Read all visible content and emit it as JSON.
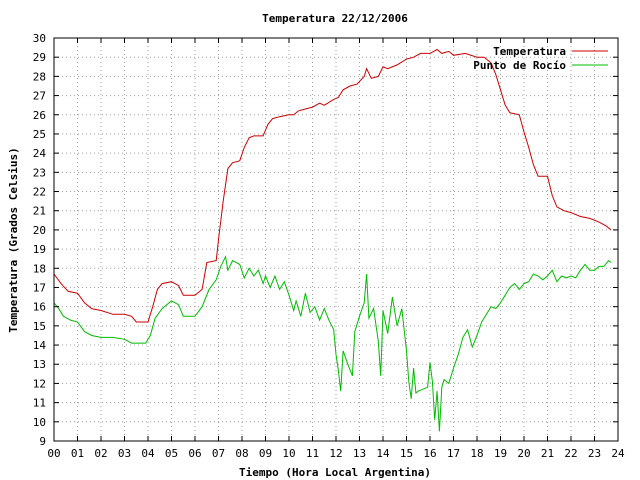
{
  "chart_data": {
    "type": "line",
    "title": "Temperatura 22/12/2006",
    "xlabel": "Tiempo (Hora Local Argentina)",
    "ylabel": "Temperatura (Grados Celsius)",
    "xlim": [
      0,
      24
    ],
    "ylim": [
      9,
      30
    ],
    "grid": true,
    "legend_position": "top-right",
    "x_tick_labels": [
      "00",
      "01",
      "02",
      "03",
      "04",
      "05",
      "06",
      "07",
      "08",
      "09",
      "10",
      "11",
      "12",
      "13",
      "14",
      "15",
      "16",
      "17",
      "18",
      "19",
      "20",
      "21",
      "22",
      "23",
      "24"
    ],
    "y_tick_labels": [
      "9",
      "10",
      "11",
      "12",
      "13",
      "14",
      "15",
      "16",
      "17",
      "18",
      "19",
      "20",
      "21",
      "22",
      "23",
      "24",
      "25",
      "26",
      "27",
      "28",
      "29",
      "30"
    ],
    "series": [
      {
        "name": "Temperatura",
        "color": "#cc0000",
        "points": [
          [
            0.0,
            17.7
          ],
          [
            0.3,
            17.2
          ],
          [
            0.6,
            16.8
          ],
          [
            1.0,
            16.7
          ],
          [
            1.3,
            16.2
          ],
          [
            1.6,
            15.9
          ],
          [
            2.0,
            15.8
          ],
          [
            2.5,
            15.6
          ],
          [
            3.0,
            15.6
          ],
          [
            3.3,
            15.5
          ],
          [
            3.5,
            15.2
          ],
          [
            4.0,
            15.2
          ],
          [
            4.2,
            16.0
          ],
          [
            4.4,
            16.9
          ],
          [
            4.6,
            17.2
          ],
          [
            5.0,
            17.3
          ],
          [
            5.3,
            17.1
          ],
          [
            5.5,
            16.6
          ],
          [
            6.0,
            16.6
          ],
          [
            6.3,
            16.9
          ],
          [
            6.5,
            18.3
          ],
          [
            6.9,
            18.4
          ],
          [
            7.0,
            19.5
          ],
          [
            7.2,
            21.5
          ],
          [
            7.4,
            23.2
          ],
          [
            7.6,
            23.5
          ],
          [
            7.9,
            23.6
          ],
          [
            8.1,
            24.3
          ],
          [
            8.3,
            24.8
          ],
          [
            8.5,
            24.9
          ],
          [
            8.9,
            24.9
          ],
          [
            9.1,
            25.5
          ],
          [
            9.3,
            25.8
          ],
          [
            9.6,
            25.9
          ],
          [
            10.0,
            26.0
          ],
          [
            10.2,
            26.0
          ],
          [
            10.4,
            26.2
          ],
          [
            10.7,
            26.3
          ],
          [
            11.0,
            26.4
          ],
          [
            11.3,
            26.6
          ],
          [
            11.5,
            26.5
          ],
          [
            11.9,
            26.8
          ],
          [
            12.1,
            26.9
          ],
          [
            12.3,
            27.3
          ],
          [
            12.6,
            27.5
          ],
          [
            12.9,
            27.6
          ],
          [
            13.2,
            28.0
          ],
          [
            13.3,
            28.4
          ],
          [
            13.5,
            27.9
          ],
          [
            13.8,
            28.0
          ],
          [
            14.0,
            28.5
          ],
          [
            14.2,
            28.4
          ],
          [
            14.6,
            28.6
          ],
          [
            15.0,
            28.9
          ],
          [
            15.3,
            29.0
          ],
          [
            15.6,
            29.2
          ],
          [
            16.0,
            29.2
          ],
          [
            16.3,
            29.4
          ],
          [
            16.5,
            29.2
          ],
          [
            16.8,
            29.3
          ],
          [
            17.0,
            29.1
          ],
          [
            17.5,
            29.2
          ],
          [
            18.0,
            29.0
          ],
          [
            18.3,
            29.0
          ],
          [
            18.6,
            28.7
          ],
          [
            18.8,
            28.1
          ],
          [
            19.0,
            27.3
          ],
          [
            19.2,
            26.5
          ],
          [
            19.4,
            26.1
          ],
          [
            19.8,
            26.0
          ],
          [
            20.0,
            25.1
          ],
          [
            20.2,
            24.3
          ],
          [
            20.4,
            23.4
          ],
          [
            20.6,
            22.8
          ],
          [
            21.0,
            22.8
          ],
          [
            21.2,
            21.8
          ],
          [
            21.4,
            21.2
          ],
          [
            21.7,
            21.0
          ],
          [
            22.0,
            20.9
          ],
          [
            22.4,
            20.7
          ],
          [
            22.8,
            20.6
          ],
          [
            23.2,
            20.4
          ],
          [
            23.5,
            20.2
          ],
          [
            23.7,
            20.0
          ]
        ]
      },
      {
        "name": "Punto de Rocío",
        "color": "#00bb00",
        "points": [
          [
            0.0,
            16.2
          ],
          [
            0.2,
            15.9
          ],
          [
            0.4,
            15.5
          ],
          [
            0.7,
            15.3
          ],
          [
            1.0,
            15.2
          ],
          [
            1.3,
            14.7
          ],
          [
            1.6,
            14.5
          ],
          [
            2.0,
            14.4
          ],
          [
            2.5,
            14.4
          ],
          [
            3.0,
            14.3
          ],
          [
            3.3,
            14.1
          ],
          [
            3.9,
            14.1
          ],
          [
            4.1,
            14.5
          ],
          [
            4.3,
            15.4
          ],
          [
            4.6,
            15.9
          ],
          [
            5.0,
            16.3
          ],
          [
            5.3,
            16.1
          ],
          [
            5.5,
            15.5
          ],
          [
            6.0,
            15.5
          ],
          [
            6.3,
            16.0
          ],
          [
            6.6,
            16.9
          ],
          [
            6.9,
            17.4
          ],
          [
            7.1,
            18.1
          ],
          [
            7.3,
            18.6
          ],
          [
            7.4,
            17.9
          ],
          [
            7.6,
            18.4
          ],
          [
            7.9,
            18.2
          ],
          [
            8.1,
            17.5
          ],
          [
            8.3,
            18.0
          ],
          [
            8.5,
            17.6
          ],
          [
            8.7,
            17.9
          ],
          [
            8.9,
            17.2
          ],
          [
            9.0,
            17.6
          ],
          [
            9.2,
            17.0
          ],
          [
            9.4,
            17.6
          ],
          [
            9.6,
            16.9
          ],
          [
            9.8,
            17.3
          ],
          [
            10.0,
            16.6
          ],
          [
            10.2,
            15.8
          ],
          [
            10.3,
            16.3
          ],
          [
            10.5,
            15.5
          ],
          [
            10.7,
            16.7
          ],
          [
            10.9,
            15.7
          ],
          [
            11.1,
            16.0
          ],
          [
            11.3,
            15.3
          ],
          [
            11.5,
            15.9
          ],
          [
            11.7,
            15.3
          ],
          [
            11.9,
            14.8
          ],
          [
            12.0,
            13.5
          ],
          [
            12.1,
            12.7
          ],
          [
            12.2,
            11.6
          ],
          [
            12.3,
            13.7
          ],
          [
            12.5,
            13.0
          ],
          [
            12.7,
            12.4
          ],
          [
            12.8,
            14.7
          ],
          [
            13.0,
            15.5
          ],
          [
            13.2,
            16.2
          ],
          [
            13.3,
            17.7
          ],
          [
            13.4,
            15.4
          ],
          [
            13.6,
            15.9
          ],
          [
            13.8,
            14.2
          ],
          [
            13.9,
            12.4
          ],
          [
            14.0,
            15.8
          ],
          [
            14.2,
            14.6
          ],
          [
            14.4,
            16.5
          ],
          [
            14.6,
            15.0
          ],
          [
            14.8,
            15.9
          ],
          [
            15.0,
            13.7
          ],
          [
            15.1,
            12.1
          ],
          [
            15.2,
            11.2
          ],
          [
            15.3,
            12.8
          ],
          [
            15.4,
            11.5
          ],
          [
            15.5,
            11.6
          ],
          [
            15.7,
            11.7
          ],
          [
            15.9,
            11.8
          ],
          [
            16.0,
            13.1
          ],
          [
            16.1,
            12.1
          ],
          [
            16.2,
            10.1
          ],
          [
            16.3,
            11.6
          ],
          [
            16.4,
            9.5
          ],
          [
            16.5,
            11.8
          ],
          [
            16.6,
            12.2
          ],
          [
            16.8,
            12.0
          ],
          [
            17.0,
            12.8
          ],
          [
            17.2,
            13.5
          ],
          [
            17.4,
            14.4
          ],
          [
            17.6,
            14.8
          ],
          [
            17.8,
            13.9
          ],
          [
            18.0,
            14.5
          ],
          [
            18.2,
            15.2
          ],
          [
            18.4,
            15.6
          ],
          [
            18.6,
            16.0
          ],
          [
            18.8,
            15.9
          ],
          [
            19.0,
            16.2
          ],
          [
            19.2,
            16.6
          ],
          [
            19.4,
            17.0
          ],
          [
            19.6,
            17.2
          ],
          [
            19.8,
            16.9
          ],
          [
            20.0,
            17.2
          ],
          [
            20.2,
            17.3
          ],
          [
            20.4,
            17.7
          ],
          [
            20.6,
            17.6
          ],
          [
            20.8,
            17.4
          ],
          [
            21.0,
            17.6
          ],
          [
            21.2,
            17.9
          ],
          [
            21.4,
            17.3
          ],
          [
            21.6,
            17.6
          ],
          [
            21.8,
            17.5
          ],
          [
            22.0,
            17.6
          ],
          [
            22.2,
            17.5
          ],
          [
            22.4,
            17.9
          ],
          [
            22.6,
            18.2
          ],
          [
            22.8,
            17.9
          ],
          [
            23.0,
            17.9
          ],
          [
            23.2,
            18.1
          ],
          [
            23.4,
            18.1
          ],
          [
            23.6,
            18.4
          ],
          [
            23.7,
            18.3
          ]
        ]
      }
    ]
  }
}
